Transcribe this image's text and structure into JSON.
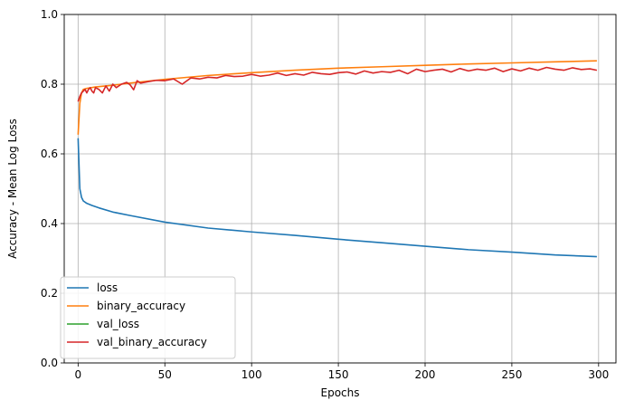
{
  "chart_data": {
    "type": "line",
    "title": "",
    "xlabel": "Epochs",
    "ylabel": "Accuracy - Mean Log Loss",
    "xlim": [
      -8,
      310
    ],
    "ylim": [
      0,
      1
    ],
    "xticks": [
      0,
      50,
      100,
      150,
      200,
      250,
      300
    ],
    "yticks": [
      0.0,
      0.2,
      0.4,
      0.6,
      0.8,
      1.0
    ],
    "grid": true,
    "legend_position": "lower-left",
    "series": [
      {
        "name": "loss",
        "color": "#1f77b4",
        "x": [
          0,
          1,
          2,
          3,
          5,
          8,
          12,
          20,
          30,
          50,
          75,
          100,
          125,
          150,
          175,
          200,
          225,
          250,
          275,
          299
        ],
        "values": [
          0.645,
          0.5,
          0.475,
          0.465,
          0.458,
          0.452,
          0.445,
          0.433,
          0.423,
          0.404,
          0.387,
          0.376,
          0.366,
          0.355,
          0.345,
          0.335,
          0.325,
          0.318,
          0.31,
          0.305
        ]
      },
      {
        "name": "binary_accuracy",
        "color": "#ff7f0e",
        "x": [
          0,
          1,
          2,
          3,
          5,
          10,
          20,
          30,
          50,
          75,
          100,
          125,
          150,
          175,
          200,
          225,
          250,
          275,
          299
        ],
        "values": [
          0.655,
          0.745,
          0.775,
          0.785,
          0.788,
          0.792,
          0.797,
          0.803,
          0.814,
          0.825,
          0.833,
          0.84,
          0.846,
          0.85,
          0.854,
          0.858,
          0.861,
          0.864,
          0.867
        ]
      },
      {
        "name": "val_loss",
        "color": "#2ca02c",
        "x": [],
        "values": []
      },
      {
        "name": "val_binary_accuracy",
        "color": "#d62728",
        "x": [
          0,
          1,
          2,
          3,
          4,
          5,
          6,
          7,
          8,
          9,
          10,
          12,
          14,
          16,
          18,
          20,
          22,
          25,
          28,
          30,
          32,
          34,
          36,
          40,
          45,
          50,
          55,
          60,
          65,
          70,
          75,
          80,
          85,
          90,
          95,
          100,
          105,
          110,
          115,
          120,
          125,
          130,
          135,
          140,
          145,
          150,
          155,
          160,
          165,
          170,
          175,
          180,
          185,
          190,
          195,
          200,
          205,
          210,
          215,
          220,
          225,
          230,
          235,
          240,
          245,
          250,
          255,
          260,
          265,
          270,
          275,
          280,
          285,
          290,
          295,
          299
        ],
        "values": [
          0.75,
          0.765,
          0.775,
          0.78,
          0.785,
          0.775,
          0.785,
          0.79,
          0.78,
          0.775,
          0.79,
          0.785,
          0.775,
          0.795,
          0.78,
          0.8,
          0.79,
          0.8,
          0.805,
          0.798,
          0.784,
          0.81,
          0.803,
          0.807,
          0.811,
          0.81,
          0.815,
          0.8,
          0.818,
          0.815,
          0.82,
          0.818,
          0.825,
          0.822,
          0.823,
          0.828,
          0.823,
          0.826,
          0.832,
          0.825,
          0.83,
          0.826,
          0.834,
          0.83,
          0.828,
          0.833,
          0.835,
          0.829,
          0.838,
          0.832,
          0.836,
          0.834,
          0.84,
          0.83,
          0.843,
          0.836,
          0.84,
          0.843,
          0.835,
          0.845,
          0.838,
          0.843,
          0.84,
          0.846,
          0.836,
          0.844,
          0.838,
          0.846,
          0.84,
          0.848,
          0.843,
          0.84,
          0.847,
          0.842,
          0.844,
          0.84
        ]
      }
    ]
  }
}
